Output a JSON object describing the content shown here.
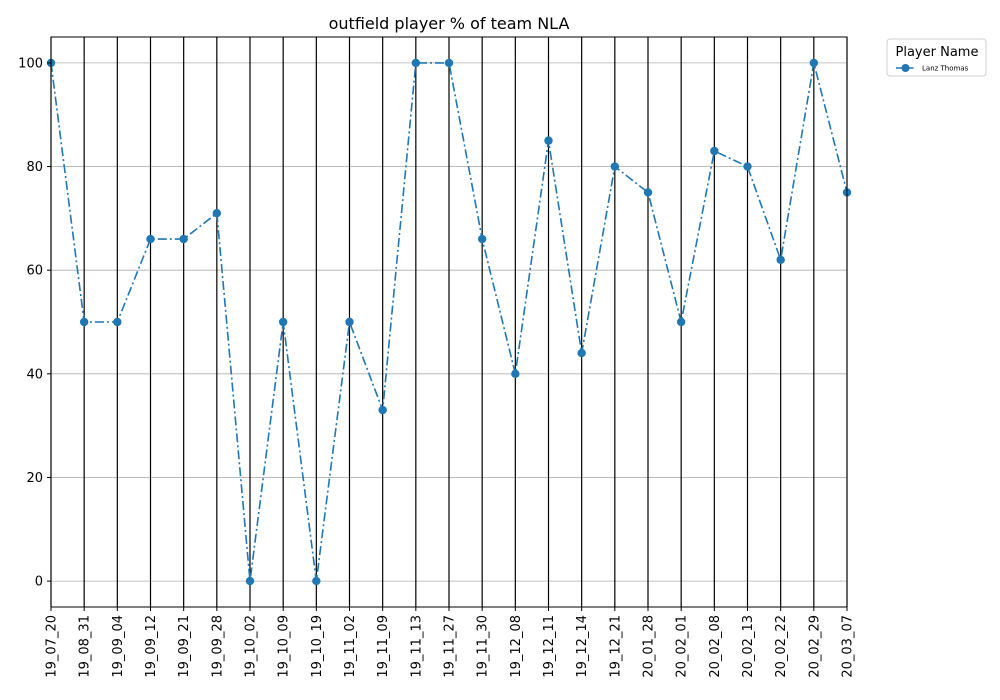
{
  "chart_data": {
    "type": "line",
    "title": "outfield player % of team NLA",
    "xlabel": "",
    "ylabel": "",
    "categories": [
      "19_07_20",
      "19_08_31",
      "19_09_04",
      "19_09_12",
      "19_09_21",
      "19_09_28",
      "19_10_02",
      "19_10_09",
      "19_10_19",
      "19_11_02",
      "19_11_09",
      "19_11_13",
      "19_11_27",
      "19_11_30",
      "19_12_08",
      "19_12_11",
      "19_12_14",
      "19_12_21",
      "20_01_28",
      "20_02_01",
      "20_02_08",
      "20_02_13",
      "20_02_22",
      "20_02_29",
      "20_03_07"
    ],
    "series": [
      {
        "name": "Lanz Thomas",
        "values": [
          100,
          50,
          50,
          66,
          66,
          71,
          0,
          50,
          0,
          50,
          33,
          100,
          100,
          66,
          40,
          85,
          44,
          80,
          75,
          50,
          83,
          80,
          62,
          100,
          75
        ]
      }
    ],
    "ylim": [
      -5,
      105
    ],
    "yticks": [
      0,
      20,
      40,
      60,
      80,
      100
    ],
    "legend_title": "Player Name",
    "legend_position": "outside-top-right",
    "grid": true,
    "line_style": "dash-dot",
    "marker": "circle",
    "colors": {
      "series": "#1f77b4",
      "vline": "#000000",
      "grid": "#b0b0b0"
    }
  }
}
